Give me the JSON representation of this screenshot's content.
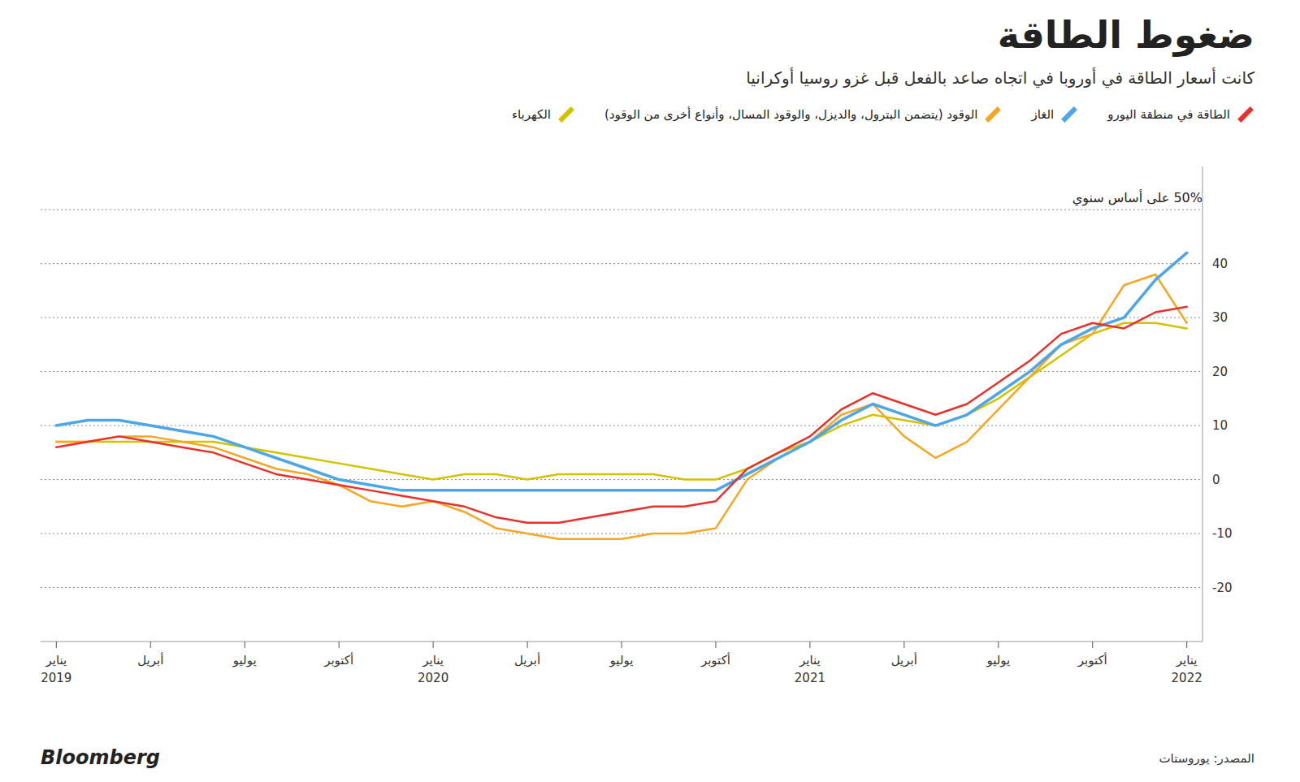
{
  "chart_data": {
    "type": "line",
    "title": "ضغوط الطاقة",
    "subtitle": "كانت أسعار الطاقة في أوروبا في اتجاه صاعد بالفعل قبل غزو روسيا أوكرانيا",
    "source": "المصدر: يوروستات",
    "credit": "Bloomberg",
    "categories": [
      "يناير 2019",
      null,
      null,
      "أبريل",
      null,
      null,
      "يوليو",
      null,
      null,
      "أكتوبر",
      null,
      null,
      "يناير 2020",
      null,
      null,
      "أبريل",
      null,
      null,
      "يوليو",
      null,
      null,
      "أكتوبر",
      null,
      null,
      "يناير 2021",
      null,
      null,
      "أبريل",
      null,
      null,
      "يوليو",
      null,
      null,
      "أكتوبر",
      null,
      null,
      "يناير 2022"
    ],
    "series": [
      {
        "name": "الطاقة في منطقة اليورو",
        "color": "#e8312a",
        "values": [
          6,
          7,
          8,
          7,
          6,
          5,
          3,
          1,
          0,
          -1,
          -2,
          -3,
          -4,
          -5,
          -7,
          -8,
          -8,
          -7,
          -6,
          -5,
          -5,
          -4,
          2,
          5,
          8,
          13,
          16,
          14,
          12,
          14,
          18,
          22,
          27,
          29,
          28,
          31,
          32
        ]
      },
      {
        "name": "الغاز",
        "color": "#4da6e8",
        "values": [
          10,
          11,
          11,
          10,
          9,
          8,
          6,
          4,
          2,
          0,
          -1,
          -2,
          -2,
          -2,
          -2,
          -2,
          -2,
          -2,
          -2,
          -2,
          -2,
          -2,
          1,
          4,
          7,
          11,
          14,
          12,
          10,
          12,
          16,
          20,
          25,
          28,
          30,
          37,
          42
        ]
      },
      {
        "name": "الوقود (يتضمن البترول، والديزل، والوقود المسال، وأنواع أخرى من الوقود)",
        "color": "#f5a623",
        "values": [
          7,
          7,
          8,
          8,
          7,
          6,
          4,
          2,
          1,
          -1,
          -4,
          -5,
          -4,
          -6,
          -9,
          -10,
          -11,
          -11,
          -11,
          -10,
          -10,
          -9,
          0,
          4,
          7,
          12,
          14,
          8,
          4,
          7,
          13,
          19,
          25,
          27,
          36,
          38,
          29
        ]
      },
      {
        "name": "الكهرباء",
        "color": "#d4c200",
        "values": [
          7,
          7,
          7,
          7,
          7,
          7,
          6,
          5,
          4,
          3,
          2,
          1,
          0,
          1,
          1,
          0,
          1,
          1,
          1,
          1,
          0,
          0,
          2,
          5,
          7,
          10,
          12,
          11,
          10,
          12,
          15,
          19,
          23,
          27,
          29,
          29,
          28
        ]
      }
    ],
    "ylim": [
      -30,
      58
    ],
    "yticks": [
      -20,
      -10,
      0,
      10,
      20,
      30,
      40,
      {
        "value": 50,
        "label": "50% على أساس سنوي"
      }
    ],
    "grid": true,
    "legend": "top"
  }
}
